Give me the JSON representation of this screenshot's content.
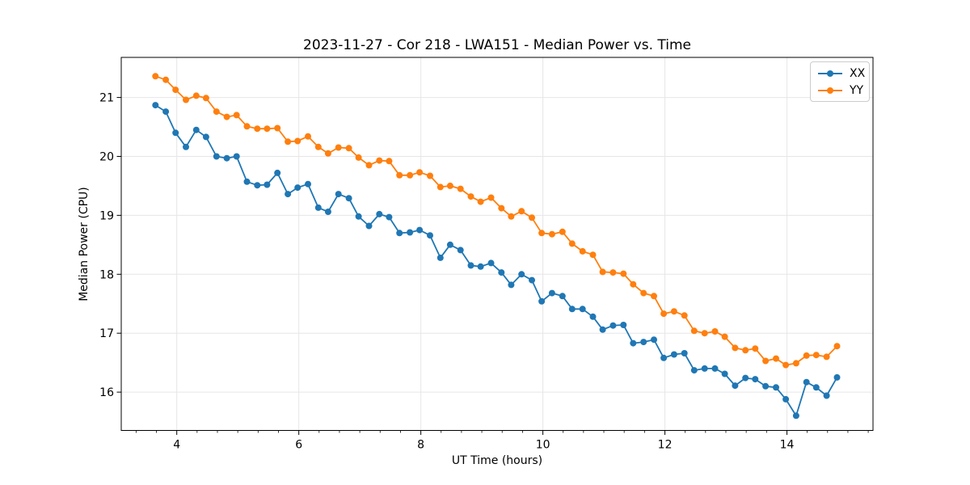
{
  "title": "2023-11-27 - Cor 218 - LWA151 - Median Power vs. Time",
  "chart_data": {
    "type": "line",
    "title": "2023-11-27 - Cor 218 - LWA151 - Median Power vs. Time",
    "xlabel": "UT Time (hours)",
    "ylabel": "Median Power (CPU)",
    "xlim": [
      3.09,
      15.41
    ],
    "ylim": [
      15.35,
      21.68
    ],
    "xticks": [
      4,
      6,
      8,
      10,
      12,
      14
    ],
    "yticks": [
      16,
      17,
      18,
      19,
      20,
      21
    ],
    "x_minor_tick_step": 0.3333,
    "grid": true,
    "grid_color": "#e6e6e6",
    "legend_position": "upper right",
    "marker": "circle",
    "x": [
      3.65,
      3.82,
      3.98,
      4.15,
      4.32,
      4.48,
      4.65,
      4.82,
      4.98,
      5.15,
      5.32,
      5.48,
      5.65,
      5.82,
      5.98,
      6.15,
      6.32,
      6.48,
      6.65,
      6.82,
      6.98,
      7.15,
      7.32,
      7.48,
      7.65,
      7.82,
      7.98,
      8.15,
      8.32,
      8.48,
      8.65,
      8.82,
      8.98,
      9.15,
      9.32,
      9.48,
      9.65,
      9.82,
      9.98,
      10.15,
      10.32,
      10.48,
      10.65,
      10.82,
      10.98,
      11.15,
      11.32,
      11.48,
      11.65,
      11.82,
      11.98,
      12.15,
      12.32,
      12.48,
      12.65,
      12.82,
      12.98,
      13.15,
      13.32,
      13.48,
      13.65,
      13.82,
      13.98,
      14.15,
      14.32,
      14.48,
      14.65,
      14.82
    ],
    "series": [
      {
        "name": "XX",
        "color": "#1f77b4",
        "values": [
          20.87,
          20.76,
          20.4,
          20.16,
          20.45,
          20.33,
          20.0,
          19.97,
          20.0,
          19.57,
          19.51,
          19.52,
          19.72,
          19.36,
          19.47,
          19.53,
          19.13,
          19.06,
          19.36,
          19.29,
          18.98,
          18.82,
          19.02,
          18.97,
          18.7,
          18.71,
          18.75,
          18.66,
          18.28,
          18.5,
          18.41,
          18.15,
          18.13,
          18.19,
          18.03,
          17.82,
          18.0,
          17.9,
          17.54,
          17.68,
          17.63,
          17.41,
          17.41,
          17.28,
          17.06,
          17.13,
          17.14,
          16.83,
          16.85,
          16.89,
          16.58,
          16.64,
          16.66,
          16.37,
          16.4,
          16.4,
          16.31,
          16.11,
          16.24,
          16.22,
          16.1,
          16.08,
          15.88,
          15.6,
          16.17,
          16.08,
          15.94,
          16.25
        ]
      },
      {
        "name": "YY",
        "color": "#ff7f0e",
        "values": [
          21.36,
          21.3,
          21.13,
          20.96,
          21.03,
          20.99,
          20.76,
          20.67,
          20.7,
          20.51,
          20.47,
          20.47,
          20.48,
          20.25,
          20.26,
          20.34,
          20.16,
          20.05,
          20.15,
          20.14,
          19.98,
          19.85,
          19.93,
          19.92,
          19.68,
          19.68,
          19.73,
          19.67,
          19.48,
          19.5,
          19.45,
          19.32,
          19.23,
          19.3,
          19.12,
          18.98,
          19.07,
          18.96,
          18.7,
          18.68,
          18.72,
          18.52,
          18.39,
          18.33,
          18.04,
          18.03,
          18.01,
          17.83,
          17.68,
          17.63,
          17.33,
          17.37,
          17.3,
          17.04,
          17.0,
          17.03,
          16.94,
          16.75,
          16.71,
          16.74,
          16.53,
          16.57,
          16.46,
          16.49,
          16.62,
          16.63,
          16.6,
          16.78
        ]
      }
    ]
  },
  "layout_colors": {
    "spine": "#000000",
    "tick": "#000000",
    "text": "#000000",
    "background": "#ffffff"
  }
}
